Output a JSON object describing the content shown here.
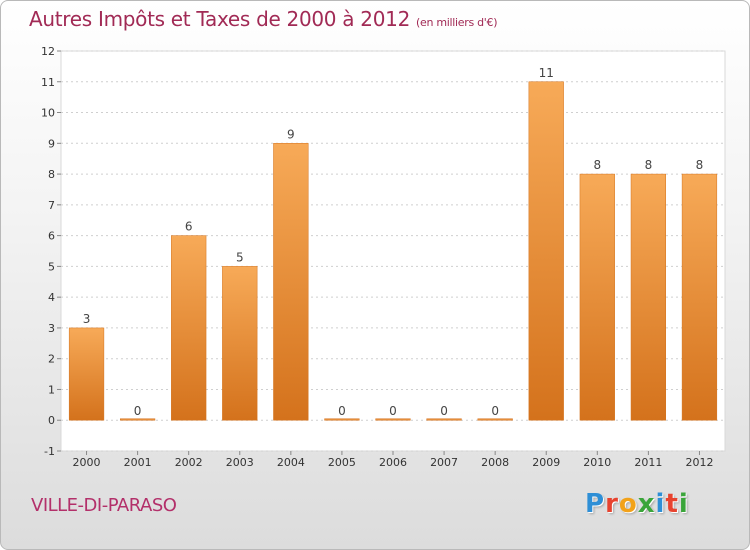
{
  "title": "Autres Impôts et Taxes de 2000 à 2012",
  "title_unit": "(en milliers d'€)",
  "commune": "VILLE-DI-PARASO",
  "logo": {
    "letters": [
      "P",
      "r",
      "o",
      "x",
      "i",
      "t",
      "i"
    ],
    "colors": [
      "#2e8fd6",
      "#e7432f",
      "#f2a21a",
      "#3aa53a",
      "#2e8fd6",
      "#e7432f",
      "#3aa53a"
    ]
  },
  "colors": {
    "bar": "#f0902e",
    "bar_light": "#f7aa58",
    "bar_dark": "#d4721c",
    "grid": "#cfcfcf",
    "title": "#a12a55"
  },
  "chart_data": {
    "type": "bar",
    "title": "Autres Impôts et Taxes de 2000 à 2012",
    "ylabel": "",
    "xlabel": "",
    "categories": [
      "2000",
      "2001",
      "2002",
      "2003",
      "2004",
      "2005",
      "2006",
      "2007",
      "2008",
      "2009",
      "2010",
      "2011",
      "2012"
    ],
    "values": [
      3,
      0,
      6,
      5,
      9,
      0,
      0,
      0,
      0,
      11,
      8,
      8,
      8
    ],
    "ylim": [
      -1,
      12
    ],
    "yticks": [
      -1,
      0,
      1,
      2,
      3,
      4,
      5,
      6,
      7,
      8,
      9,
      10,
      11,
      12
    ],
    "ytick_labels": [
      "-1",
      "0",
      "1",
      "2",
      "3",
      "4",
      "5",
      "6",
      "7",
      "8",
      "9",
      "10",
      "11",
      "12"
    ],
    "grid": true
  }
}
